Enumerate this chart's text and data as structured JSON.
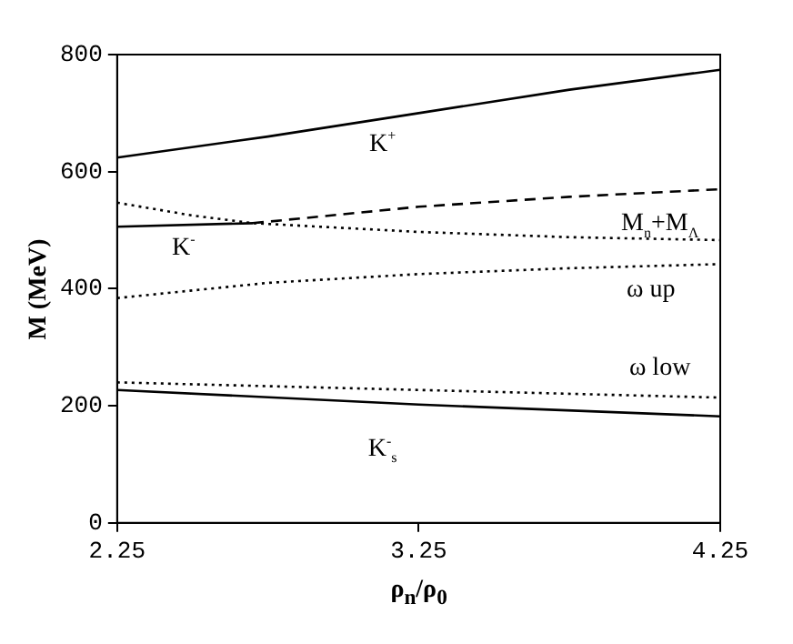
{
  "chart_data": {
    "type": "line",
    "xlabel": "ρ$_{n}$/ρ$_{0}$",
    "ylabel": "M (MeV)",
    "xlim": [
      2.25,
      4.25
    ],
    "xticks": [
      2.25,
      3.25,
      4.25
    ],
    "ylim": [
      0,
      800
    ],
    "yticks": [
      0,
      200,
      400,
      600,
      800
    ],
    "grid": false,
    "legend": false,
    "marker": "none",
    "series": [
      {
        "name": "K$^{+}$",
        "color": "#000000",
        "line_style": "solid",
        "x": [
          2.25,
          2.75,
          3.25,
          3.75,
          4.25
        ],
        "values": [
          624,
          660,
          700,
          740,
          774
        ]
      },
      {
        "name": "K$^{-}$",
        "color": "#000000",
        "line_style": "solid",
        "x": [
          2.25,
          2.7
        ],
        "values": [
          506,
          512
        ]
      },
      {
        "color": "#000000",
        "line_style": "dashed",
        "x": [
          2.7,
          3.25,
          3.75,
          4.25
        ],
        "values": [
          512,
          540,
          557,
          570
        ]
      },
      {
        "name": "M$_{n}$+M$_{Λ}$",
        "color": "#000000",
        "line_style": "dotted",
        "x": [
          2.25,
          2.5,
          2.7,
          3.25,
          3.75,
          4.25
        ],
        "values": [
          547,
          525,
          512,
          497,
          488,
          483
        ]
      },
      {
        "name": "ω up",
        "color": "#000000",
        "line_style": "dotted",
        "x": [
          2.25,
          2.75,
          3.25,
          3.75,
          4.25
        ],
        "values": [
          384,
          410,
          425,
          435,
          442
        ]
      },
      {
        "name": "ω low",
        "color": "#000000",
        "line_style": "dotted",
        "x": [
          2.25,
          3.25,
          4.25
        ],
        "values": [
          240,
          227,
          214
        ]
      },
      {
        "name": "K$^{-}$$_{s}$",
        "color": "#000000",
        "line_style": "solid",
        "x": [
          2.25,
          3.25,
          4.25
        ],
        "values": [
          227,
          202,
          182
        ]
      }
    ]
  }
}
